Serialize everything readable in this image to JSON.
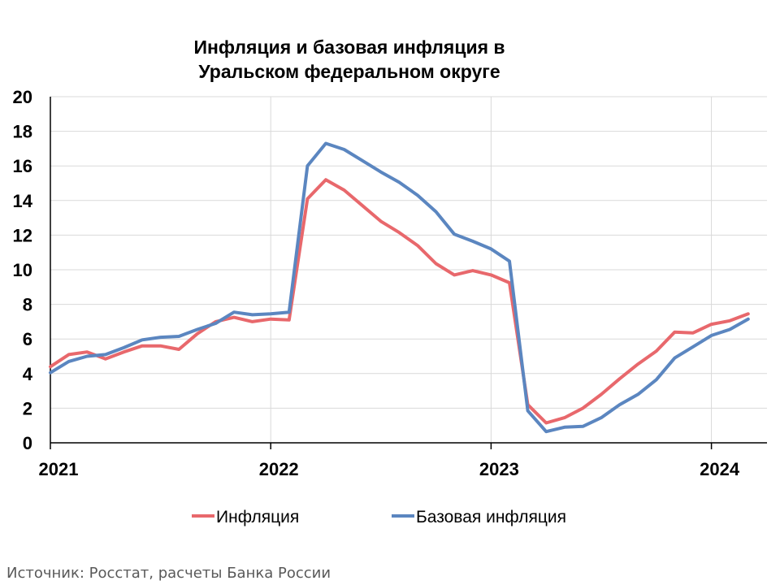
{
  "chart_data": {
    "type": "line",
    "title_lines": [
      "Инфляция и базовая инфляция в",
      "Уральском федеральном округе"
    ],
    "xlabel": "",
    "ylabel": "",
    "ylim": [
      0,
      20
    ],
    "yticks": [
      0,
      2,
      4,
      6,
      8,
      10,
      12,
      14,
      16,
      18,
      20
    ],
    "x_year_ticks": [
      "2021",
      "2022",
      "2023",
      "2024"
    ],
    "x_start": "2021-01",
    "x_end": "2024-03",
    "grid": true,
    "legend_position": "bottom",
    "x": [
      "2021-01",
      "2021-02",
      "2021-03",
      "2021-04",
      "2021-05",
      "2021-06",
      "2021-07",
      "2021-08",
      "2021-09",
      "2021-10",
      "2021-11",
      "2021-12",
      "2022-01",
      "2022-02",
      "2022-03",
      "2022-04",
      "2022-05",
      "2022-06",
      "2022-07",
      "2022-08",
      "2022-09",
      "2022-10",
      "2022-11",
      "2022-12",
      "2023-01",
      "2023-02",
      "2023-03",
      "2023-04",
      "2023-05",
      "2023-06",
      "2023-07",
      "2023-08",
      "2023-09",
      "2023-10",
      "2023-11",
      "2023-12",
      "2024-01",
      "2024-02",
      "2024-03"
    ],
    "series": [
      {
        "name": "Инфляция",
        "color": "#E8686C",
        "values": [
          4.4,
          5.1,
          5.25,
          4.85,
          5.25,
          5.6,
          5.6,
          5.4,
          6.3,
          7.0,
          7.25,
          7.0,
          7.15,
          7.1,
          14.1,
          15.2,
          14.6,
          13.7,
          12.8,
          12.15,
          11.4,
          10.35,
          9.7,
          9.95,
          9.7,
          9.25,
          2.2,
          1.15,
          1.45,
          2.0,
          2.8,
          3.7,
          4.55,
          5.3,
          6.4,
          6.35,
          6.85,
          7.05,
          7.45
        ]
      },
      {
        "name": "Базовая инфляция",
        "color": "#5B86C0",
        "values": [
          4.05,
          4.7,
          5.0,
          5.1,
          5.5,
          5.95,
          6.1,
          6.15,
          6.55,
          6.9,
          7.55,
          7.4,
          7.45,
          7.55,
          16.0,
          17.3,
          16.95,
          16.3,
          15.65,
          15.05,
          14.3,
          13.35,
          12.05,
          11.65,
          11.2,
          10.5,
          1.85,
          0.65,
          0.9,
          0.95,
          1.45,
          2.2,
          2.8,
          3.65,
          4.9,
          5.55,
          6.2,
          6.55,
          7.15
        ]
      }
    ]
  },
  "source": "Источник: Росстат, расчеты Банка России"
}
